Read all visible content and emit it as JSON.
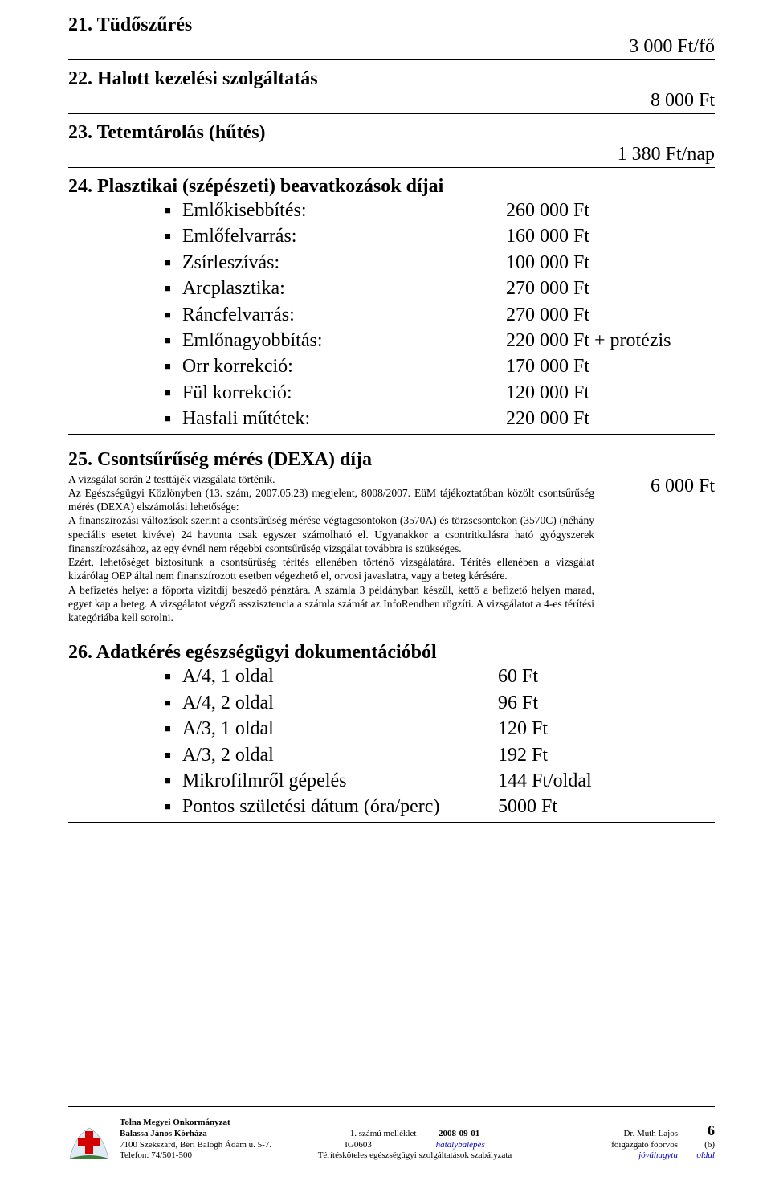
{
  "s21": {
    "title": "21. Tüdőszűrés",
    "price": "3 000 Ft/fő"
  },
  "s22": {
    "title": "22. Halott kezelési szolgáltatás",
    "price": "8 000 Ft"
  },
  "s23": {
    "title": "23. Tetemtárolás (hűtés)",
    "price": "1 380 Ft/nap"
  },
  "s24": {
    "title": "24. Plasztikai (szépészeti) beavatkozások díjai",
    "items": [
      {
        "label": "Emlőkisebbítés:",
        "value": "260 000 Ft"
      },
      {
        "label": "Emlőfelvarrás:",
        "value": "160 000 Ft"
      },
      {
        "label": "Zsírleszívás:",
        "value": "100 000 Ft"
      },
      {
        "label": "Arcplasztika:",
        "value": "270 000 Ft"
      },
      {
        "label": "Ráncfelvarrás:",
        "value": "270 000 Ft"
      },
      {
        "label": "Emlőnagyobbítás:",
        "value": "220 000 Ft + protézis"
      },
      {
        "label": "Orr korrekció:",
        "value": "170 000 Ft"
      },
      {
        "label": "Fül korrekció:",
        "value": "120 000 Ft"
      },
      {
        "label": "Hasfali műtétek:",
        "value": "220 000 Ft"
      }
    ]
  },
  "s25": {
    "title": "25. Csontsűrűség mérés (DEXA) díja",
    "price": "6 000 Ft",
    "desc": "A vizsgálat során 2 testtájék vizsgálata történik.\nAz Egészségügyi Közlönyben (13. szám, 2007.05.23) megjelent, 8008/2007. EüM tájékoztatóban közölt csontsűrűség mérés (DEXA) elszámolási lehetősége:\nA finanszírozási változások szerint a csontsűrűség mérése végtagcsontokon (3570A) és törzscsontokon (3570C) (néhány speciális esetet kivéve) 24 havonta csak egyszer számolható el. Ugyanakkor a csontritkulásra ható gyógyszerek finanszírozásához, az egy évnél nem régebbi csontsűrűség vizsgálat továbbra is szükséges.\nEzért, lehetőséget biztosítunk a csontsűrűség térítés ellenében történő vizsgálatára. Térítés ellenében a vizsgálat kizárólag OEP által nem finanszírozott esetben végezhető el, orvosi javaslatra, vagy a beteg kérésére.\nA befizetés helye: a főporta vizitdíj beszedő pénztára. A számla 3 példányban készül, kettő a befizető helyen marad, egyet kap a beteg. A vizsgálatot végző asszisztencia a számla számát az InfoRendben rögzíti. A vizsgálatot a 4-es térítési kategóriába kell sorolni."
  },
  "s26": {
    "title": "26. Adatkérés egészségügyi dokumentációból",
    "items": [
      {
        "label": "A/4, 1 oldal",
        "value": "60 Ft"
      },
      {
        "label": "A/4, 2 oldal",
        "value": "96 Ft"
      },
      {
        "label": "A/3, 1 oldal",
        "value": "120 Ft"
      },
      {
        "label": "A/3, 2 oldal",
        "value": "192 Ft"
      },
      {
        "label": "Mikrofilmről gépelés",
        "value": "144 Ft/oldal"
      },
      {
        "label": "Pontos születési dátum (óra/perc)",
        "value": "5000 Ft"
      }
    ]
  },
  "footer": {
    "org1": "Tolna Megyei Önkormányzat",
    "org2": "Balassa János Kórháza",
    "addr": "7100 Szekszárd, Béri Balogh Ádám u. 5-7.",
    "tel": "Telefon: 74/501-500",
    "center1": "1. számú melléklet",
    "center_date": "2008-09-01",
    "center2": "IG0603",
    "center3_i": "hatálybalépés",
    "center4": "Térítésköteles egészségügyi szolgáltatások szabályzata",
    "right1": "Dr. Muth Lajos",
    "right2": "főigazgató főorvos",
    "right3_i": "jóváhagyta",
    "page": "6",
    "page_paren": "(6)",
    "page_word": "oldal"
  }
}
